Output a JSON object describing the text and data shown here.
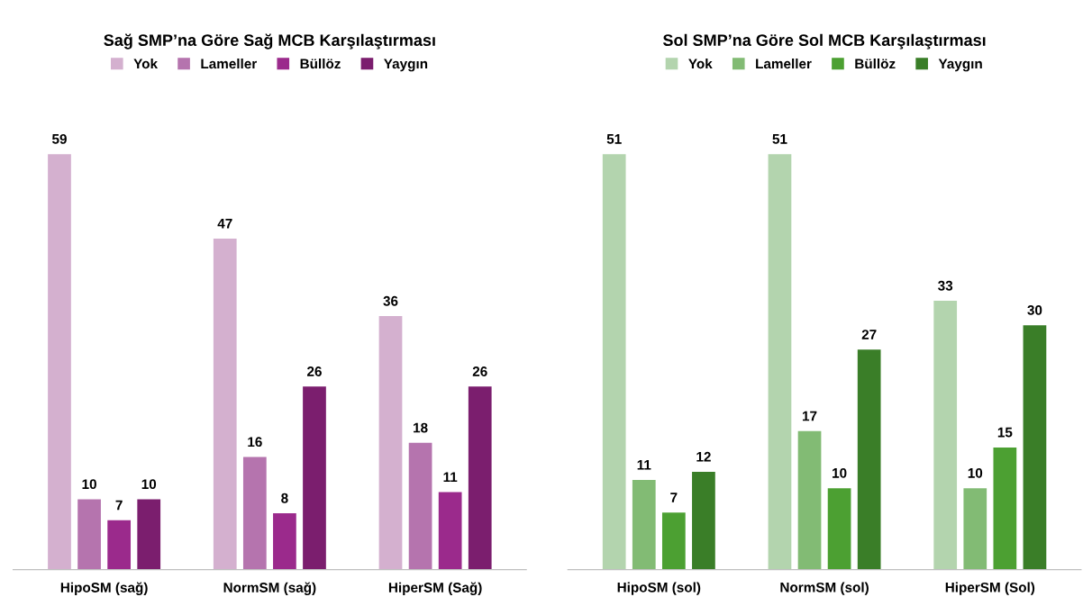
{
  "chart_data": [
    {
      "type": "bar",
      "title": "Sağ SMP’na Göre Sağ MCB Karşılaştırması",
      "categories": [
        "HipoSM (sağ)",
        "NormSM (sağ)",
        "HiperSM (Sağ)"
      ],
      "series": [
        {
          "name": "Yok",
          "color": "#d4b0cf",
          "values": [
            59,
            47,
            36
          ]
        },
        {
          "name": "Lameller",
          "color": "#b574ae",
          "values": [
            10,
            16,
            18
          ]
        },
        {
          "name": "Büllöz",
          "color": "#9b2a8c",
          "values": [
            7,
            8,
            11
          ]
        },
        {
          "name": "Yaygın",
          "color": "#7b1e6e",
          "values": [
            10,
            26,
            26
          ]
        }
      ],
      "data_labels": true,
      "legend": "top",
      "grid": false,
      "tick_labels": "x"
    },
    {
      "type": "bar",
      "title": "Sol SMP’na Göre Sol MCB Karşılaştırması",
      "categories": [
        "HipoSM (sol)",
        "NormSM (sol)",
        "HiperSM (Sol)"
      ],
      "series": [
        {
          "name": "Yok",
          "color": "#b3d4ae",
          "values": [
            51,
            51,
            33
          ]
        },
        {
          "name": "Lameller",
          "color": "#82bb74",
          "values": [
            11,
            17,
            10
          ]
        },
        {
          "name": "Büllöz",
          "color": "#4ca032",
          "values": [
            7,
            10,
            15
          ]
        },
        {
          "name": "Yaygın",
          "color": "#3a7e28",
          "values": [
            12,
            27,
            30
          ]
        }
      ],
      "data_labels": true,
      "legend": "top",
      "grid": false,
      "tick_labels": "x"
    }
  ]
}
